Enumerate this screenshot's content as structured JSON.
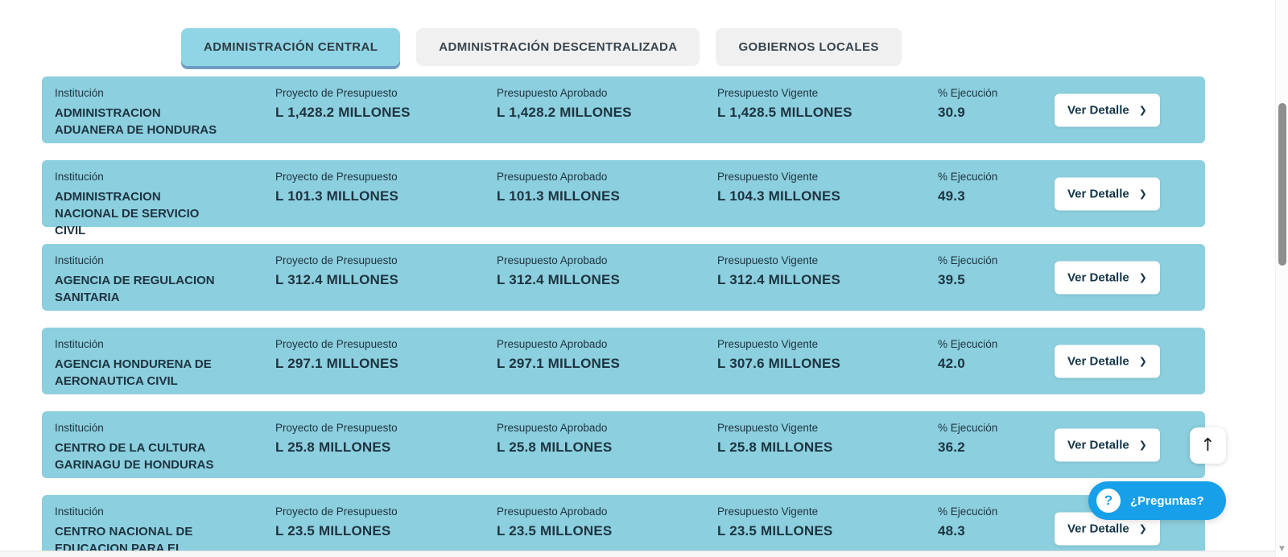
{
  "tabs": [
    {
      "label": "ADMINISTRACIÓN CENTRAL",
      "active": true
    },
    {
      "label": "ADMINISTRACIÓN DESCENTRALIZADA",
      "active": false
    },
    {
      "label": "GOBIERNOS LOCALES",
      "active": false
    }
  ],
  "row_labels": {
    "institution": "Institución",
    "proyecto": "Proyecto de Presupuesto",
    "aprobado": "Presupuesto Aprobado",
    "vigente": "Presupuesto Vigente",
    "ejecucion": "% Ejecución"
  },
  "detail_button_label": "Ver Detalle",
  "rows": [
    {
      "name": "ADMINISTRACION ADUANERA DE HONDURAS",
      "proyecto": "L 1,428.2 MILLONES",
      "aprobado": "L 1,428.2 MILLONES",
      "vigente": "L 1,428.5 MILLONES",
      "ejecucion": "30.9"
    },
    {
      "name": "ADMINISTRACION NACIONAL DE SERVICIO CIVIL",
      "proyecto": "L 101.3 MILLONES",
      "aprobado": "L 101.3 MILLONES",
      "vigente": "L 104.3 MILLONES",
      "ejecucion": "49.3"
    },
    {
      "name": "AGENCIA DE REGULACION SANITARIA",
      "proyecto": "L 312.4 MILLONES",
      "aprobado": "L 312.4 MILLONES",
      "vigente": "L 312.4 MILLONES",
      "ejecucion": "39.5"
    },
    {
      "name": "AGENCIA HONDURENA DE AERONAUTICA CIVIL",
      "proyecto": "L 297.1 MILLONES",
      "aprobado": "L 297.1 MILLONES",
      "vigente": "L 307.6 MILLONES",
      "ejecucion": "42.0"
    },
    {
      "name": "CENTRO DE LA CULTURA GARINAGU DE HONDURAS",
      "proyecto": "L 25.8 MILLONES",
      "aprobado": "L 25.8 MILLONES",
      "vigente": "L 25.8 MILLONES",
      "ejecucion": "36.2"
    },
    {
      "name": "CENTRO NACIONAL DE EDUCACION PARA EL",
      "proyecto": "L 23.5 MILLONES",
      "aprobado": "L 23.5 MILLONES",
      "vigente": "L 23.5 MILLONES",
      "ejecucion": "48.3"
    }
  ],
  "floating": {
    "questions_label": "¿Preguntas?"
  },
  "icons": {
    "chevron_right": "❯",
    "question_mark": "?",
    "arrow_up": "↑",
    "scroll_down": "▼"
  },
  "colors": {
    "accent_blue": "#17A0E9",
    "row_teal": "#8CCFDE",
    "active_tab": "#90D5E5",
    "active_tab_shadow": "#6E9CC3",
    "tab_gray": "#F0F0F0",
    "text_dark": "#1D3340"
  }
}
